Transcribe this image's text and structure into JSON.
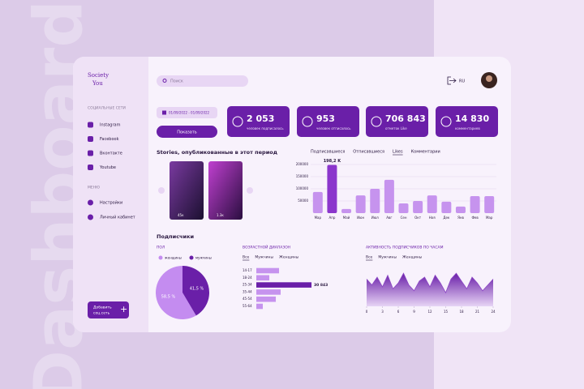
{
  "background_text": "Dashboard",
  "sidebar": {
    "logo": [
      "Society",
      "You"
    ],
    "social_heading": "СОЦИАЛЬНЫЕ СЕТИ",
    "social": [
      "Instagram",
      "Facebook",
      "Вконтакте",
      "Youtube"
    ],
    "menu_heading": "МЕНЮ",
    "menu": [
      "Настройки",
      "Личный кабинет"
    ],
    "add_button": [
      "Добавить",
      "соц.сеть"
    ]
  },
  "header": {
    "search": "Поиск",
    "lang": "RU"
  },
  "filters": {
    "date_range": "01/09/2022 - 01/09/2022",
    "show_button": "Показать"
  },
  "stats": [
    {
      "value": "2 053",
      "label": "человек подписалось"
    },
    {
      "value": "953",
      "label": "человек отписалось"
    },
    {
      "value": "706 843",
      "label": "отметок Like"
    },
    {
      "value": "14 830",
      "label": "комментариев"
    }
  ],
  "stories": {
    "title": "Stories, опубликованные в этот период",
    "views": [
      "45к",
      "1.3к"
    ]
  },
  "likes_chart": {
    "type": "bar",
    "tabs": [
      "Подписавшиеся",
      "Отписавшиеся",
      "Likes",
      "Комментарии"
    ],
    "active_tab": 2,
    "categories": [
      "Мар",
      "Апр",
      "Май",
      "Июн",
      "Июл",
      "Авг",
      "Сен",
      "Окт",
      "Ноя",
      "Дек",
      "Янв",
      "Фев",
      "Мар"
    ],
    "values": [
      87000,
      198200,
      17000,
      73000,
      100000,
      137000,
      40000,
      50000,
      73000,
      47000,
      27000,
      70000,
      70000
    ],
    "value_labels": [
      null,
      "198,2 K",
      null,
      null,
      null,
      null,
      null,
      null,
      null,
      null,
      null,
      null,
      null
    ],
    "color": "#c693ee",
    "highlight_color": "#8b36cc",
    "highlight": 1,
    "ylim": [
      0,
      200000
    ],
    "yticks": [
      50000,
      100000,
      150000,
      200000
    ],
    "grid": true
  },
  "subscribers": {
    "title": "Подписчики",
    "gender": {
      "type": "pie",
      "title": "ПОЛ",
      "series": [
        {
          "name": "женщины",
          "color": "#c48cf0",
          "values": [
            58.5
          ],
          "value_labels": [
            "58,5 %"
          ]
        },
        {
          "name": "мужчины",
          "color": "#6a1fa8",
          "values": [
            41.5
          ],
          "value_labels": [
            "41,5 %"
          ]
        }
      ]
    },
    "age": {
      "type": "bar",
      "orientation": "horizontal",
      "title": "ВОЗРАСТНОЙ ДИАПАЗОН",
      "tabs": [
        "Все",
        "Мужчины",
        "Женщины"
      ],
      "active_tab": 0,
      "categories": [
        "14-17",
        "18-24",
        "25-34",
        "35-44",
        "45-54",
        "55-64"
      ],
      "values": [
        12700,
        7260,
        30843,
        13600,
        10900,
        3630
      ],
      "value_labels": [
        null,
        null,
        "30 843",
        null,
        null,
        null
      ],
      "color": "#c693ee",
      "highlight_color": "#6a1fa8",
      "highlight": 2,
      "xlim": [
        0,
        34000
      ]
    },
    "activity": {
      "type": "area",
      "title": "АКТИВНОСТЬ ПОДПИСЧИКОВ ПО ЧАСАМ",
      "tabs": [
        "Все",
        "Мужчины",
        "Женщины"
      ],
      "active_tab": 0,
      "x": [
        0,
        1,
        2,
        3,
        4,
        5,
        6,
        7,
        8,
        9,
        10,
        11,
        12,
        13,
        14,
        15,
        16,
        17,
        18,
        19,
        20,
        21,
        22,
        23,
        24
      ],
      "values": [
        70,
        55,
        75,
        50,
        80,
        45,
        60,
        85,
        55,
        40,
        65,
        75,
        50,
        80,
        60,
        35,
        70,
        85,
        65,
        45,
        75,
        60,
        40,
        55,
        70
      ],
      "color": "#8b46c4",
      "xlim": [
        0,
        24
      ],
      "ylim": [
        0,
        100
      ],
      "xticks": [
        0,
        3,
        6,
        9,
        12,
        15,
        18,
        21,
        24
      ]
    }
  }
}
